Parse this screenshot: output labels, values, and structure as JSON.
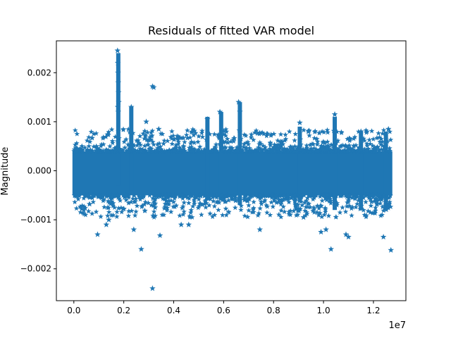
{
  "chart_data": {
    "type": "scatter",
    "title": "Residuals of fitted VAR model",
    "xlabel": "",
    "ylabel": "Magnitude",
    "x_offset_label": "1e7",
    "x_scale": 10000000,
    "xlim": [
      -700000,
      13300000
    ],
    "ylim": [
      -0.00265,
      0.00265
    ],
    "xticks": [
      {
        "value": 0,
        "label": "0.0"
      },
      {
        "value": 2000000,
        "label": "0.2"
      },
      {
        "value": 4000000,
        "label": "0.4"
      },
      {
        "value": 6000000,
        "label": "0.6"
      },
      {
        "value": 8000000,
        "label": "0.8"
      },
      {
        "value": 10000000,
        "label": "1.0"
      },
      {
        "value": 12000000,
        "label": "1.2"
      }
    ],
    "yticks": [
      {
        "value": -0.002,
        "label": "−0.002"
      },
      {
        "value": -0.001,
        "label": "−0.001"
      },
      {
        "value": 0.0,
        "label": "0.000"
      },
      {
        "value": 0.001,
        "label": "0.001"
      },
      {
        "value": 0.002,
        "label": "0.002"
      }
    ],
    "marker": "star",
    "color": "#1f77b4",
    "grid": false,
    "legend": "none",
    "x_range": [
      0,
      12700000
    ],
    "core_band": {
      "lower": -0.0005,
      "upper": 0.0004
    },
    "points": [
      {
        "x": 1750000,
        "y": 0.00245
      },
      {
        "x": 1760000,
        "y": 0.0022
      },
      {
        "x": 1770000,
        "y": 0.002
      },
      {
        "x": 1780000,
        "y": 0.0018
      },
      {
        "x": 1790000,
        "y": 0.0016
      },
      {
        "x": 1800000,
        "y": 0.0014
      },
      {
        "x": 1780000,
        "y": 0.0012
      },
      {
        "x": 1760000,
        "y": 0.0013
      },
      {
        "x": 3150000,
        "y": 0.00172
      },
      {
        "x": 3200000,
        "y": 0.0017
      },
      {
        "x": 3150000,
        "y": -0.0024
      },
      {
        "x": 2700000,
        "y": -0.0016
      },
      {
        "x": 3450000,
        "y": -0.00132
      },
      {
        "x": 2400000,
        "y": -0.0012
      },
      {
        "x": 950000,
        "y": -0.0013
      },
      {
        "x": 1300000,
        "y": -0.0011
      },
      {
        "x": 1400000,
        "y": -0.001
      },
      {
        "x": 7450000,
        "y": -0.0012
      },
      {
        "x": 9900000,
        "y": -0.00125
      },
      {
        "x": 10100000,
        "y": -0.0012
      },
      {
        "x": 10300000,
        "y": -0.0016
      },
      {
        "x": 10900000,
        "y": -0.0013
      },
      {
        "x": 11000000,
        "y": -0.00135
      },
      {
        "x": 12400000,
        "y": -0.00135
      },
      {
        "x": 12700000,
        "y": -0.00162
      },
      {
        "x": 6600000,
        "y": 0.0014
      },
      {
        "x": 6650000,
        "y": 0.0012
      },
      {
        "x": 5350000,
        "y": 0.00105
      },
      {
        "x": 4300000,
        "y": -0.0011
      },
      {
        "x": 4600000,
        "y": -0.0011
      },
      {
        "x": 9200000,
        "y": -0.00095
      },
      {
        "x": 2300000,
        "y": 0.0013
      },
      {
        "x": 2900000,
        "y": 0.001
      },
      {
        "x": 3400000,
        "y": 0.00085
      },
      {
        "x": 5850000,
        "y": 0.0012
      },
      {
        "x": 9050000,
        "y": 0.00098
      },
      {
        "x": 9400000,
        "y": 0.0008
      },
      {
        "x": 10450000,
        "y": 0.00115
      },
      {
        "x": 12600000,
        "y": 0.00085
      },
      {
        "x": 11500000,
        "y": 0.0008
      }
    ],
    "spikes": [
      {
        "x": 1780000,
        "ymax": 0.0024,
        "ymin": -0.0003
      },
      {
        "x": 2300000,
        "ymax": 0.0013,
        "ymin": -0.0004
      },
      {
        "x": 5350000,
        "ymax": 0.0011,
        "ymin": -0.0006
      },
      {
        "x": 5900000,
        "ymax": 0.0012,
        "ymin": -0.0006
      },
      {
        "x": 6650000,
        "ymax": 0.0014,
        "ymin": -0.0007
      },
      {
        "x": 10450000,
        "ymax": 0.0011,
        "ymin": -0.0008
      },
      {
        "x": 9050000,
        "ymax": 0.0009,
        "ymin": -0.0006
      },
      {
        "x": 11500000,
        "ymax": 0.0008,
        "ymin": -0.0008
      },
      {
        "x": 12500000,
        "ymax": 0.0008,
        "ymin": -0.0008
      }
    ]
  }
}
